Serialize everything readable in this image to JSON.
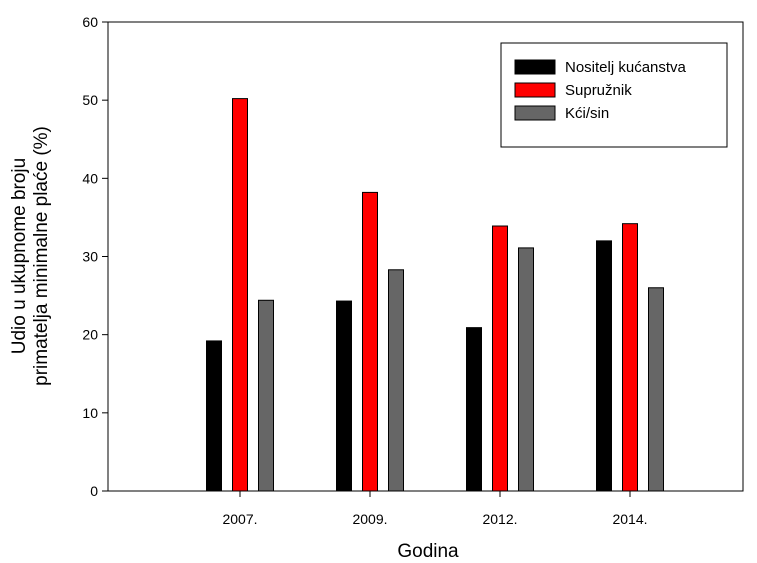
{
  "chart_data": {
    "type": "bar",
    "xlabel": "Godina",
    "ylabel_line1": "Udio u ukupnome broju",
    "ylabel_line2": "primatelja minimalne plaće (%)",
    "categories": [
      "2007.",
      "2009.",
      "2012.",
      "2014."
    ],
    "ylim": [
      0,
      60
    ],
    "yticks": [
      0,
      10,
      20,
      30,
      40,
      50,
      60
    ],
    "legend_position": "top-right",
    "grid": false,
    "series": [
      {
        "name": "Nositelj kućanstva",
        "color": "#000000",
        "values": [
          19.2,
          24.3,
          20.9,
          32.0
        ]
      },
      {
        "name": "Supružnik",
        "color": "#ff0000",
        "values": [
          50.2,
          38.2,
          33.9,
          34.2
        ]
      },
      {
        "name": "Kći/sin",
        "color": "#666666",
        "values": [
          24.4,
          28.3,
          31.1,
          26.0
        ]
      }
    ]
  }
}
